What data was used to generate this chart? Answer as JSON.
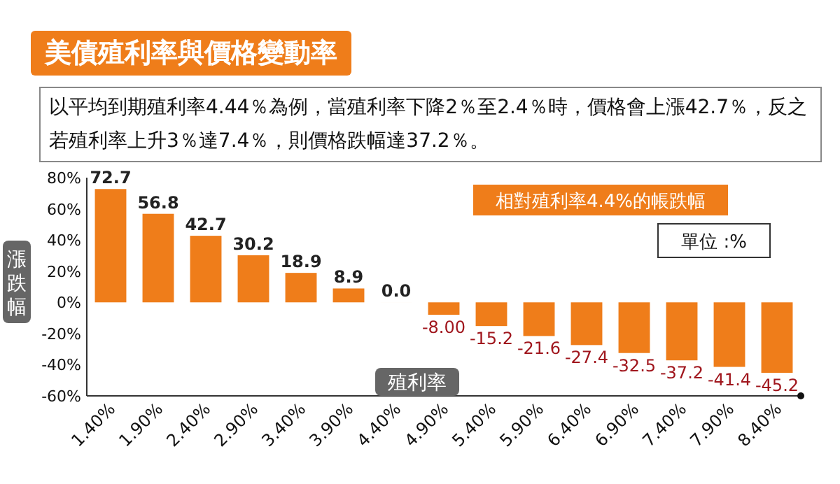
{
  "chart_data": {
    "type": "bar",
    "title": "美債殖利率與價格變動率",
    "subtitle": "以平均到期殖利率4.44％為例，當殖利率下降2％至2.4％時，價格會上漲42.7％，反之若殖利率上升3％達7.4％，則價格跌幅達37.2％。",
    "xlabel": "殖利率",
    "ylabel": "漲跌幅",
    "annotations": [
      "相對殖利率4.4%的帳跌幅",
      "單位 :%"
    ],
    "categories": [
      "1.40%",
      "1.90%",
      "2.40%",
      "2.90%",
      "3.40%",
      "3.90%",
      "4.40%",
      "4.90%",
      "5.40%",
      "5.90%",
      "6.40%",
      "6.90%",
      "7.40%",
      "7.90%",
      "8.40%"
    ],
    "values": [
      72.7,
      56.8,
      42.7,
      30.2,
      18.9,
      8.9,
      0.0,
      -8.0,
      -15.2,
      -21.6,
      -27.4,
      -32.5,
      -37.2,
      -41.4,
      -45.2
    ],
    "value_labels": [
      "72.7",
      "56.8",
      "42.7",
      "30.2",
      "18.9",
      "8.9",
      "0.0",
      "-8.00",
      "-15.2",
      "-21.6",
      "-27.4",
      "-32.5",
      "-37.2",
      "-41.4",
      "-45.2"
    ],
    "color": "#ef7d1a",
    "ylim": [
      -60,
      80
    ],
    "yticks": [
      {
        "value": 80,
        "label": "80%"
      },
      {
        "value": 60,
        "label": "60%"
      },
      {
        "value": 40,
        "label": "40%"
      },
      {
        "value": 20,
        "label": "20%"
      },
      {
        "value": 0,
        "label": "0%"
      },
      {
        "value": -20,
        "label": "-20%"
      },
      {
        "value": -40,
        "label": "-40%"
      },
      {
        "value": -60,
        "label": "-60%"
      }
    ],
    "grid": false
  }
}
